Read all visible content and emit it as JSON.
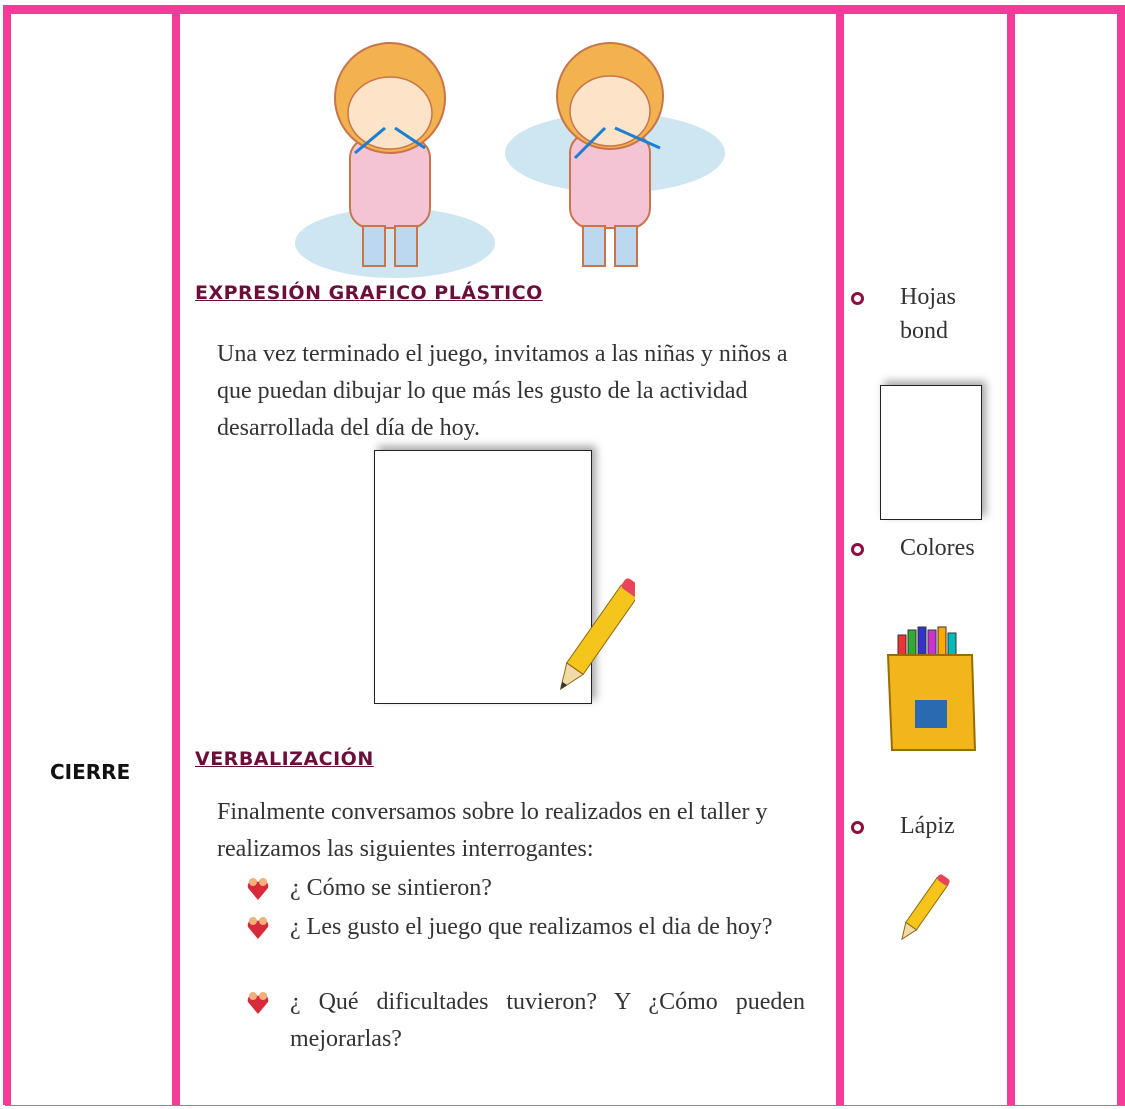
{
  "table": {
    "rows": [
      {
        "stage": "CIERRE",
        "content": {
          "sections": [
            {
              "heading": "EXPRESIÓN GRAFICO PLÁSTICO",
              "paragraph": "Una vez terminado el juego, invitamos a las niñas y niños a que puedan dibujar lo que más les gusto de la actividad desarrollada del día de hoy."
            },
            {
              "heading": "VERBALIZACIÓN",
              "paragraph": "Finalmente conversamos sobre lo realizados en el taller y realizamos las siguientes interrogantes:",
              "questions": [
                "¿ Cómo se sintieron?",
                "¿ Les gusto el juego que realizamos el dia de hoy?",
                "¿ Qué dificultades tuvieron? Y ¿Cómo pueden mejorarlas?"
              ]
            }
          ]
        },
        "materials": [
          "Hojas bond",
          "Colores",
          "Lápiz"
        ]
      }
    ]
  }
}
